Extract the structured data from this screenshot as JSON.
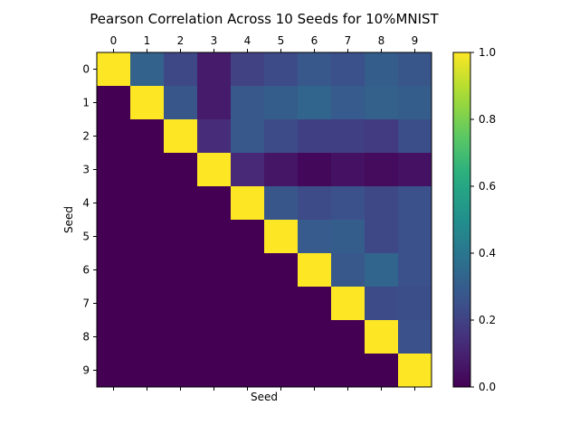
{
  "chart_data": {
    "type": "heatmap",
    "title": "Pearson Correlation Across 10 Seeds for 10%MNIST",
    "xlabel": "Seed",
    "ylabel": "Seed",
    "x_ticks": [
      "0",
      "1",
      "2",
      "3",
      "4",
      "5",
      "6",
      "7",
      "8",
      "9"
    ],
    "y_ticks": [
      "0",
      "1",
      "2",
      "3",
      "4",
      "5",
      "6",
      "7",
      "8",
      "9"
    ],
    "colormap": "viridis",
    "vmin": 0.0,
    "vmax": 1.0,
    "colorbar_ticks": [
      "0.0",
      "0.2",
      "0.4",
      "0.6",
      "0.8",
      "1.0"
    ],
    "colorbar_tick_values": [
      0.0,
      0.2,
      0.4,
      0.6,
      0.8,
      1.0
    ],
    "matrix": [
      [
        1.0,
        0.32,
        0.22,
        0.08,
        0.2,
        0.23,
        0.28,
        0.25,
        0.3,
        0.27
      ],
      [
        0.0,
        1.0,
        0.27,
        0.08,
        0.28,
        0.3,
        0.33,
        0.29,
        0.31,
        0.3
      ],
      [
        0.0,
        0.0,
        1.0,
        0.13,
        0.28,
        0.23,
        0.19,
        0.19,
        0.18,
        0.24
      ],
      [
        0.0,
        0.0,
        0.0,
        1.0,
        0.12,
        0.06,
        0.02,
        0.05,
        0.03,
        0.05
      ],
      [
        0.0,
        0.0,
        0.0,
        0.0,
        1.0,
        0.27,
        0.23,
        0.25,
        0.22,
        0.25
      ],
      [
        0.0,
        0.0,
        0.0,
        0.0,
        0.0,
        1.0,
        0.29,
        0.3,
        0.22,
        0.25
      ],
      [
        0.0,
        0.0,
        0.0,
        0.0,
        0.0,
        0.0,
        1.0,
        0.28,
        0.33,
        0.25
      ],
      [
        0.0,
        0.0,
        0.0,
        0.0,
        0.0,
        0.0,
        0.0,
        1.0,
        0.23,
        0.24
      ],
      [
        0.0,
        0.0,
        0.0,
        0.0,
        0.0,
        0.0,
        0.0,
        0.0,
        1.0,
        0.25
      ],
      [
        0.0,
        0.0,
        0.0,
        0.0,
        0.0,
        0.0,
        0.0,
        0.0,
        0.0,
        1.0
      ]
    ]
  }
}
